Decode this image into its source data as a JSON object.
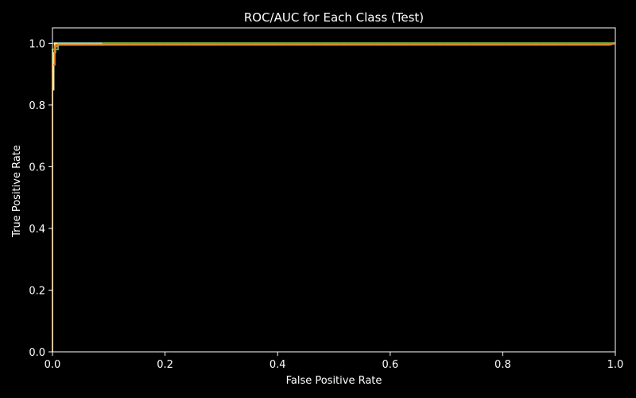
{
  "chart_data": {
    "type": "line",
    "title": "ROC/AUC for Each Class (Test)",
    "xlabel": "False Positive Rate",
    "ylabel": "True Positive Rate",
    "xlim": [
      0.0,
      1.0
    ],
    "ylim": [
      0.0,
      1.05
    ],
    "xticks": [
      "0.0",
      "0.2",
      "0.4",
      "0.6",
      "0.8",
      "1.0"
    ],
    "yticks": [
      "0.0",
      "0.2",
      "0.4",
      "0.6",
      "0.8",
      "1.0"
    ],
    "grid": false,
    "background": "#000000",
    "foreground": "#ffffff",
    "series": [
      {
        "color": "#fff68f",
        "x": [
          0.0,
          0.0,
          0.002,
          0.002,
          0.004,
          0.004,
          1.0
        ],
        "y": [
          0.0,
          0.85,
          0.85,
          0.97,
          0.97,
          1.0,
          1.0
        ]
      },
      {
        "color": "#8dd3c7",
        "x": [
          0.0,
          0.0,
          0.005,
          0.005,
          0.01,
          0.01,
          1.0
        ],
        "y": [
          0.0,
          0.97,
          0.97,
          0.99,
          0.99,
          1.0,
          1.0
        ]
      },
      {
        "color": "#6aaa3a",
        "x": [
          0.0,
          0.0,
          0.01,
          0.01,
          0.09,
          0.09,
          1.0
        ],
        "y": [
          0.0,
          0.98,
          0.98,
          0.995,
          0.995,
          1.0,
          1.0
        ]
      },
      {
        "color": "#ff7f0e",
        "x": [
          0.0,
          0.0,
          0.004,
          0.004,
          0.008,
          0.008,
          0.99,
          1.0
        ],
        "y": [
          0.0,
          0.93,
          0.93,
          0.99,
          0.99,
          0.995,
          0.995,
          1.0
        ]
      }
    ],
    "reference_line": {
      "color": "#3b4cc0",
      "style": "dashed",
      "x": [
        0.0,
        1.0
      ],
      "y": [
        1.0,
        1.0
      ]
    }
  }
}
